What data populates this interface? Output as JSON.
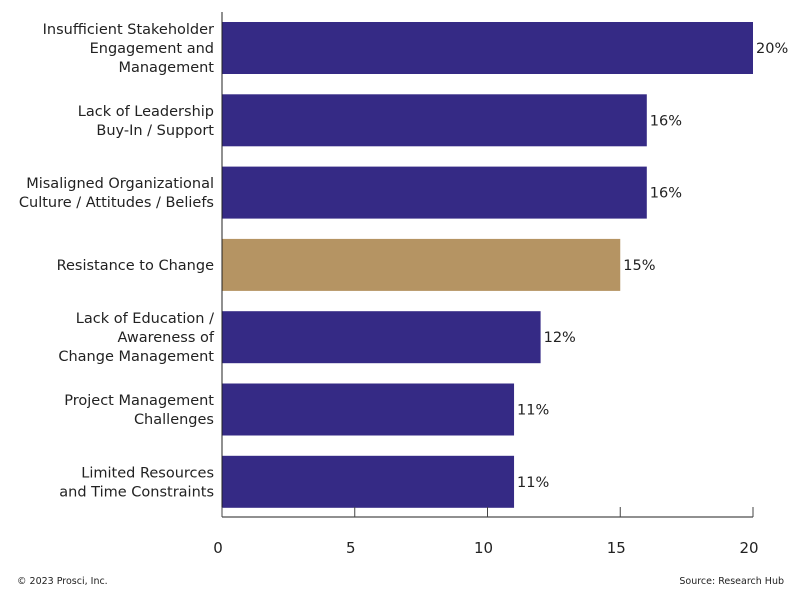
{
  "chart_data": {
    "type": "bar",
    "orientation": "horizontal",
    "categories": [
      [
        "Insufficient Stakeholder",
        "Engagement and",
        "Management"
      ],
      [
        "Lack of Leadership",
        "Buy-In / Support"
      ],
      [
        "Misaligned Organizational",
        "Culture / Attitudes / Beliefs"
      ],
      [
        "Resistance to Change"
      ],
      [
        "Lack of Education /",
        "Awareness of",
        "Change Management"
      ],
      [
        "Project Management",
        "Challenges"
      ],
      [
        "Limited Resources",
        "and Time Constraints"
      ]
    ],
    "values": [
      20,
      16,
      16,
      15,
      12,
      11,
      11
    ],
    "data_labels": [
      "20%",
      "16%",
      "16%",
      "15%",
      "12%",
      "11%",
      "11%"
    ],
    "highlight_index": 3,
    "colors": {
      "default": "#352a85",
      "highlight": "#b59463"
    },
    "xlim": [
      0,
      20
    ],
    "xticks": [
      0,
      5,
      10,
      15,
      20
    ],
    "grid": false
  },
  "footer": {
    "copyright": "© 2023 Prosci, Inc.",
    "source": "Source: Research Hub"
  }
}
